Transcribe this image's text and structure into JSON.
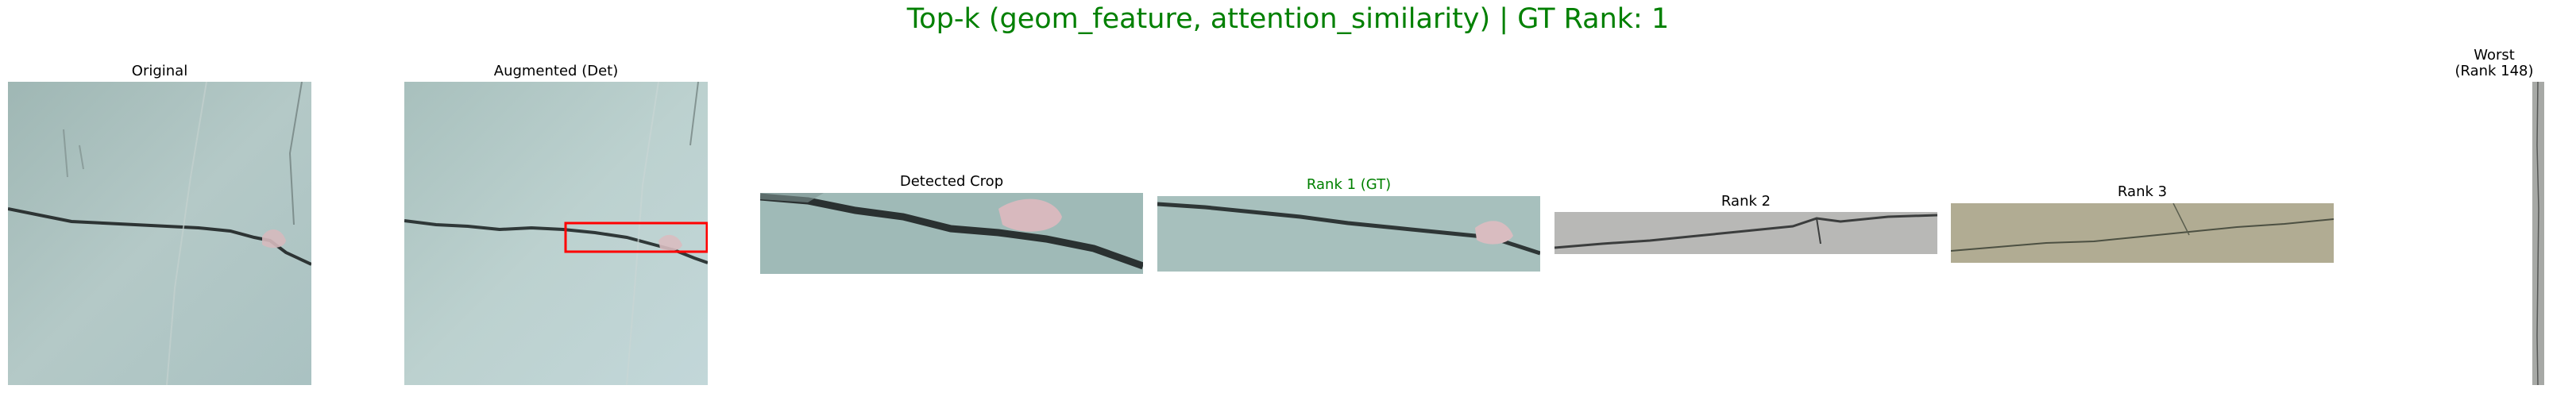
{
  "figure": {
    "title": "Top-k (geom_feature, attention_similarity) | GT Rank: 1"
  },
  "panels": {
    "original": {
      "label": "Original"
    },
    "augmented": {
      "label": "Augmented (Det)"
    },
    "detected_crop": {
      "label": "Detected Crop"
    },
    "rank1": {
      "label": "Rank 1 (GT)"
    },
    "rank2": {
      "label": "Rank 2"
    },
    "rank3": {
      "label": "Rank 3"
    },
    "worst": {
      "label_line1": "Worst",
      "label_line2": "(Rank 148)"
    }
  },
  "colors": {
    "title": "#008000",
    "gt_label": "#008000",
    "detection_box": "#ff0000"
  }
}
